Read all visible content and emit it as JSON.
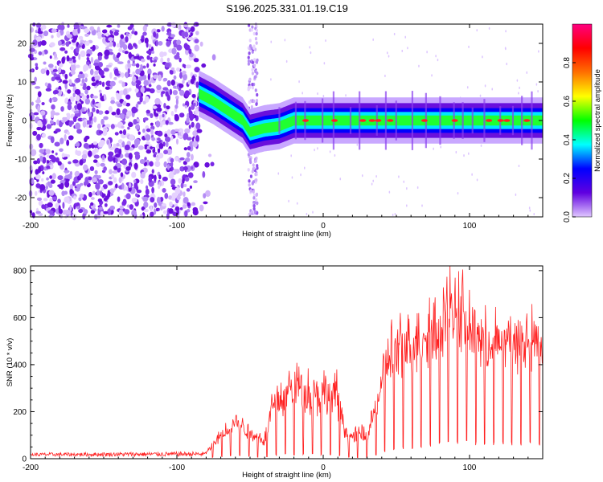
{
  "title": "S196.2025.331.01.19.C19",
  "chart_data": [
    {
      "type": "heatmap",
      "title": "S196.2025.331.01.19.C19",
      "xlabel": "Height of straight line (km)",
      "ylabel": "Frequency (Hz)",
      "xlim": [
        -200,
        150
      ],
      "ylim": [
        -25,
        25
      ],
      "xticks": [
        -200,
        -100,
        0,
        100
      ],
      "yticks": [
        -20,
        -10,
        0,
        10,
        20
      ],
      "colorbar": {
        "label": "Normalized spectral amplitude",
        "range": [
          0,
          1
        ],
        "ticks": [
          "0.0",
          "0.2",
          "0.4",
          "0.6",
          "0.8"
        ],
        "colormap": [
          "#e0c8ff",
          "#6000e0",
          "#0000ff",
          "#00ffff",
          "#00ff00",
          "#ffff00",
          "#ff7000",
          "#ff0000",
          "#ff0080"
        ]
      },
      "features": {
        "noise_region_x": [
          -200,
          -85
        ],
        "noise_stripe_x": -48,
        "ridge": [
          {
            "x": -85,
            "f": 7
          },
          {
            "x": -75,
            "f": 5
          },
          {
            "x": -65,
            "f": 2.5
          },
          {
            "x": -55,
            "f": 0
          },
          {
            "x": -50,
            "f": -3
          },
          {
            "x": -40,
            "f": -2
          },
          {
            "x": -30,
            "f": -1.5
          },
          {
            "x": -20,
            "f": 0
          },
          {
            "x": 150,
            "f": 0
          }
        ]
      }
    },
    {
      "type": "line",
      "xlabel": "Height of straight line (km)",
      "ylabel": "SNR (10 * v/v)",
      "xlim": [
        -200,
        150
      ],
      "ylim": [
        0,
        820
      ],
      "xticks": [
        -200,
        -100,
        0,
        100
      ],
      "yticks": [
        0,
        200,
        400,
        600,
        800
      ],
      "series_color": "#ff2020",
      "series": [
        {
          "name": "SNR",
          "profile": [
            {
              "x": -200,
              "baseline": 10,
              "peak": 25
            },
            {
              "x": -80,
              "baseline": 10,
              "peak": 30
            },
            {
              "x": -70,
              "baseline": 40,
              "peak": 120
            },
            {
              "x": -60,
              "baseline": 60,
              "peak": 200
            },
            {
              "x": -50,
              "baseline": 40,
              "peak": 140
            },
            {
              "x": -40,
              "baseline": 20,
              "peak": 100
            },
            {
              "x": -35,
              "baseline": 60,
              "peak": 300
            },
            {
              "x": -25,
              "baseline": 80,
              "peak": 350
            },
            {
              "x": -20,
              "baseline": 70,
              "peak": 400
            },
            {
              "x": -10,
              "baseline": 80,
              "peak": 370
            },
            {
              "x": 10,
              "baseline": 60,
              "peak": 340
            },
            {
              "x": 15,
              "baseline": 30,
              "peak": 150
            },
            {
              "x": 20,
              "baseline": 20,
              "peak": 120
            },
            {
              "x": 30,
              "baseline": 20,
              "peak": 140
            },
            {
              "x": 35,
              "baseline": 60,
              "peak": 250
            },
            {
              "x": 45,
              "baseline": 150,
              "peak": 550
            },
            {
              "x": 60,
              "baseline": 200,
              "peak": 580
            },
            {
              "x": 80,
              "baseline": 250,
              "peak": 720
            },
            {
              "x": 90,
              "baseline": 280,
              "peak": 800
            },
            {
              "x": 110,
              "baseline": 250,
              "peak": 580
            },
            {
              "x": 130,
              "baseline": 250,
              "peak": 600
            },
            {
              "x": 150,
              "baseline": 250,
              "peak": 580
            }
          ]
        }
      ]
    }
  ]
}
